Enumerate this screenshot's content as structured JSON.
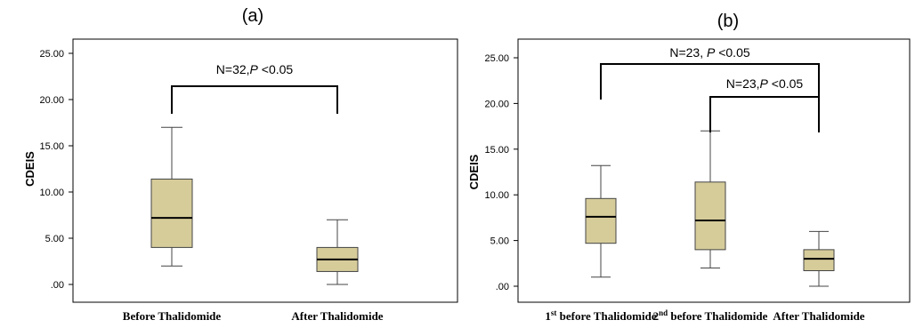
{
  "chart_data": [
    {
      "type": "box",
      "panel_label": "(a)",
      "ylabel": "CDEIS",
      "ylim": [
        0,
        25
      ],
      "yticks": [
        ".00",
        "5.00",
        "10.00",
        "15.00",
        "20.00",
        "25.00"
      ],
      "categories": [
        {
          "prefix": "",
          "sup": "",
          "rest": "Before Thalidomide"
        },
        {
          "prefix": "",
          "sup": "",
          "rest": "After Thalidomide"
        }
      ],
      "boxes": [
        {
          "min": 2.0,
          "q1": 4.0,
          "median": 7.2,
          "q3": 11.4,
          "max": 17.0
        },
        {
          "min": 0.0,
          "q1": 1.4,
          "median": 2.7,
          "q3": 4.0,
          "max": 7.0
        }
      ],
      "annotations": [
        {
          "n_text": "N=32,",
          "p_letter": "P",
          "p_text": " <0.05",
          "from": 0,
          "to": 1,
          "level": 0
        }
      ],
      "box_color": "#d6cc9a",
      "grid": false
    },
    {
      "type": "box",
      "panel_label": "(b)",
      "ylabel": "CDEIS",
      "ylim": [
        0,
        25
      ],
      "yticks": [
        ".00",
        "5.00",
        "10.00",
        "15.00",
        "20.00",
        "25.00"
      ],
      "categories": [
        {
          "prefix": "1",
          "sup": "st",
          "rest": " before Thalidomide"
        },
        {
          "prefix": "2",
          "sup": "nd",
          "rest": "  before Thalidomide"
        },
        {
          "prefix": "",
          "sup": "",
          "rest": "After Thalidomide"
        }
      ],
      "boxes": [
        {
          "min": 1.0,
          "q1": 4.7,
          "median": 7.6,
          "q3": 9.6,
          "max": 13.2
        },
        {
          "min": 2.0,
          "q1": 4.0,
          "median": 7.2,
          "q3": 11.4,
          "max": 17.0
        },
        {
          "min": 0.0,
          "q1": 1.7,
          "median": 3.0,
          "q3": 4.0,
          "max": 6.0
        }
      ],
      "annotations": [
        {
          "n_text": "N=23, ",
          "p_letter": "P",
          "p_text": " <0.05",
          "from": 0,
          "to": 2,
          "level": 0
        },
        {
          "n_text": "N=23,",
          "p_letter": "P",
          "p_text": " <0.05",
          "from": 1,
          "to": 2,
          "level": 1
        }
      ],
      "box_color": "#d6cc9a",
      "grid": false
    }
  ]
}
